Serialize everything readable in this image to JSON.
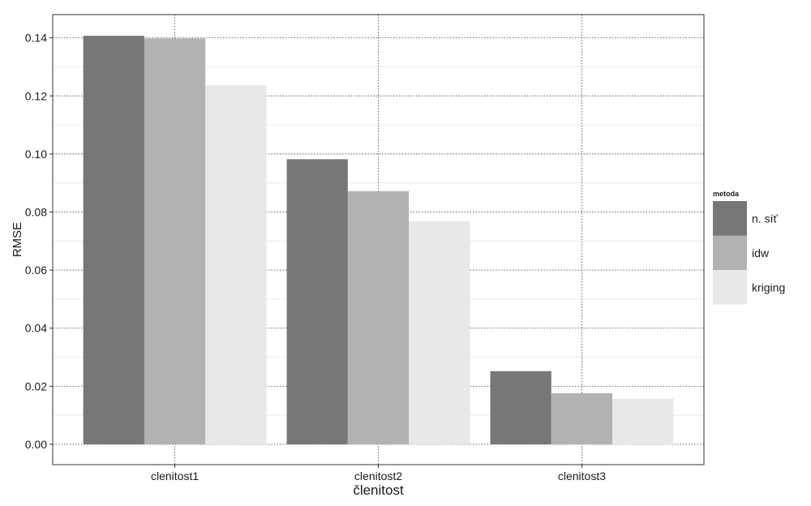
{
  "chart_data": {
    "type": "bar",
    "title": "",
    "xlabel": "členitost",
    "ylabel": "RMSE",
    "categories": [
      "clenitost1",
      "clenitost2",
      "clenitost3"
    ],
    "series": [
      {
        "name": "n. síť",
        "color": "#777777",
        "values": [
          0.1407,
          0.0982,
          0.0252
        ]
      },
      {
        "name": "idw",
        "color": "#b2b2b2",
        "values": [
          0.1398,
          0.0872,
          0.0176
        ]
      },
      {
        "name": "kriging",
        "color": "#e8e8e8",
        "values": [
          0.1237,
          0.0768,
          0.0157
        ]
      }
    ],
    "ylim": [
      -0.007,
      0.148
    ],
    "yticks": [
      "0.00",
      "0.02",
      "0.04",
      "0.06",
      "0.08",
      "0.10",
      "0.12",
      "0.14"
    ],
    "grid": true,
    "legend": {
      "title": "metoda",
      "position": "right"
    }
  }
}
